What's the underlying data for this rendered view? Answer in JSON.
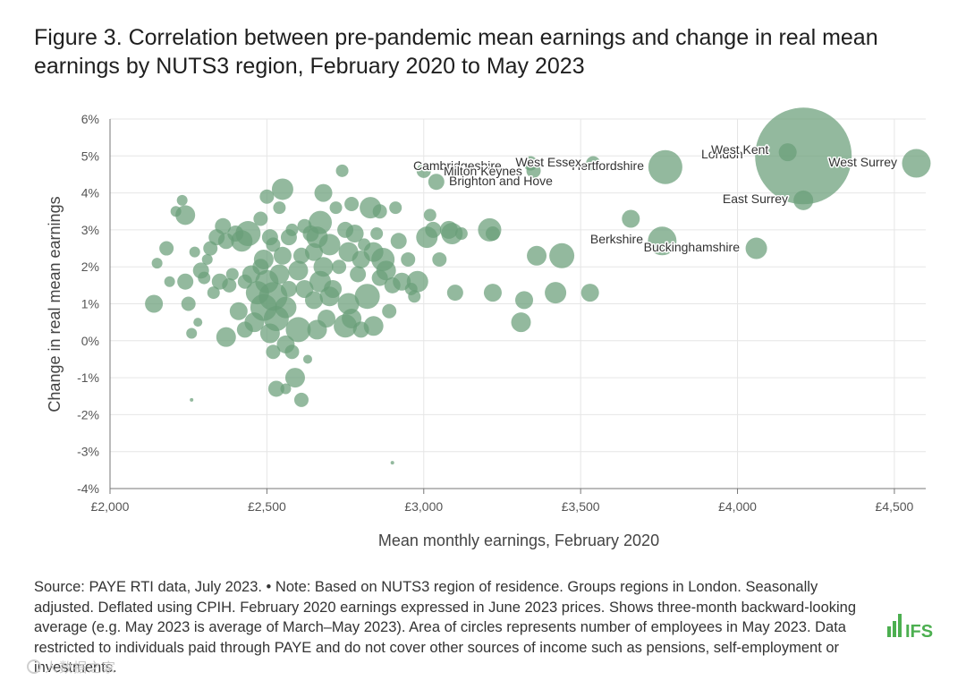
{
  "title": "Figure 3. Correlation between pre-pandemic mean earnings and change in real mean earnings by NUTS3 region, February 2020 to May 2023",
  "note": "Source: PAYE RTI data, July 2023. • Note: Based on NUTS3 region of residence. Groups regions in London. Seasonally adjusted. Deflated using CPIH. February 2020 earnings expressed in June 2023 prices. Shows three-month backward-looking average (e.g. May 2023 is average of March–May 2023). Area of circles represents number of employees in May 2023. Data restricted to individuals paid through PAYE and do not cover other sources of income such as pensions, self-employment or investments.",
  "logo_text": "IFS",
  "watermark_text": "人数据之家",
  "colors": {
    "point": "#6a9e78",
    "grid": "#e6e6e6",
    "axis": "#777777",
    "brand": "#4caf50"
  },
  "chart_data": {
    "type": "scatter",
    "xlabel": "Mean monthly earnings, February 2020",
    "ylabel": "Change in real mean earnings",
    "xlim": [
      2000,
      4600
    ],
    "ylim": [
      -4,
      6
    ],
    "x_ticks": [
      2000,
      2500,
      3000,
      3500,
      4000,
      4500
    ],
    "x_tick_labels": [
      "£2,000",
      "£2,500",
      "£3,000",
      "£3,500",
      "£4,000",
      "£4,500"
    ],
    "y_ticks": [
      -4,
      -3,
      -2,
      -1,
      0,
      1,
      2,
      3,
      4,
      5,
      6
    ],
    "y_tick_labels": [
      "-4%",
      "-3%",
      "-2%",
      "-1%",
      "0%",
      "1%",
      "2%",
      "3%",
      "4%",
      "5%",
      "6%"
    ],
    "size_meaning": "Area of circles represents number of employees in May 2023",
    "labeled_points": [
      {
        "name": "London",
        "x": 4210,
        "y": 5.0,
        "r": 54
      },
      {
        "name": "West Surrey",
        "x": 4570,
        "y": 4.8,
        "r": 16
      },
      {
        "name": "West Kent",
        "x": 4160,
        "y": 5.1,
        "r": 10
      },
      {
        "name": "East Surrey",
        "x": 4210,
        "y": 3.8,
        "r": 11
      },
      {
        "name": "Buckinghamshire",
        "x": 4060,
        "y": 2.5,
        "r": 12
      },
      {
        "name": "Berkshire",
        "x": 3760,
        "y": 2.7,
        "r": 16
      },
      {
        "name": "Hertfordshire",
        "x": 3770,
        "y": 4.7,
        "r": 19
      },
      {
        "name": "West Essex",
        "x": 3540,
        "y": 4.8,
        "r": 8
      },
      {
        "name": "Cambridgeshire",
        "x": 3340,
        "y": 4.8,
        "r": 8
      },
      {
        "name": "Milton Keynes",
        "x": 3350,
        "y": 4.6,
        "r": 8
      },
      {
        "name": "Brighton and Hove",
        "x": 3040,
        "y": 4.3,
        "r": 9
      }
    ],
    "points": [
      [
        2140,
        1.0,
        10
      ],
      [
        2150,
        2.1,
        6
      ],
      [
        2180,
        2.5,
        8
      ],
      [
        2190,
        1.6,
        6
      ],
      [
        2210,
        3.5,
        6
      ],
      [
        2230,
        3.8,
        6
      ],
      [
        2240,
        3.4,
        11
      ],
      [
        2240,
        1.6,
        9
      ],
      [
        2250,
        1.0,
        8
      ],
      [
        2260,
        0.2,
        6
      ],
      [
        2270,
        2.4,
        6
      ],
      [
        2280,
        0.5,
        5
      ],
      [
        2290,
        1.9,
        9
      ],
      [
        2300,
        1.7,
        7
      ],
      [
        2310,
        2.2,
        6
      ],
      [
        2320,
        2.5,
        8
      ],
      [
        2330,
        1.3,
        7
      ],
      [
        2340,
        2.8,
        9
      ],
      [
        2350,
        1.6,
        9
      ],
      [
        2360,
        3.1,
        9
      ],
      [
        2370,
        0.1,
        11
      ],
      [
        2370,
        2.7,
        9
      ],
      [
        2380,
        1.5,
        8
      ],
      [
        2390,
        1.8,
        7
      ],
      [
        2400,
        2.9,
        9
      ],
      [
        2410,
        0.8,
        10
      ],
      [
        2420,
        2.7,
        12
      ],
      [
        2430,
        1.6,
        8
      ],
      [
        2430,
        0.3,
        9
      ],
      [
        2440,
        2.9,
        14
      ],
      [
        2450,
        1.8,
        10
      ],
      [
        2460,
        0.5,
        11
      ],
      [
        2470,
        1.3,
        13
      ],
      [
        2480,
        2.0,
        9
      ],
      [
        2480,
        3.3,
        8
      ],
      [
        2490,
        0.9,
        15
      ],
      [
        2490,
        2.2,
        11
      ],
      [
        2500,
        1.6,
        13
      ],
      [
        2500,
        3.9,
        8
      ],
      [
        2510,
        2.8,
        9
      ],
      [
        2510,
        0.2,
        11
      ],
      [
        2520,
        1.2,
        16
      ],
      [
        2520,
        2.6,
        8
      ],
      [
        2520,
        -0.3,
        8
      ],
      [
        2530,
        -1.3,
        9
      ],
      [
        2530,
        0.6,
        14
      ],
      [
        2540,
        1.8,
        11
      ],
      [
        2540,
        3.6,
        7
      ],
      [
        2550,
        4.1,
        12
      ],
      [
        2550,
        2.3,
        10
      ],
      [
        2560,
        0.9,
        12
      ],
      [
        2560,
        -0.1,
        10
      ],
      [
        2570,
        1.4,
        9
      ],
      [
        2570,
        2.8,
        9
      ],
      [
        2580,
        -0.3,
        8
      ],
      [
        2580,
        3.0,
        7
      ],
      [
        2590,
        -1.0,
        11
      ],
      [
        2600,
        0.3,
        14
      ],
      [
        2600,
        1.9,
        11
      ],
      [
        2610,
        2.3,
        9
      ],
      [
        2620,
        3.1,
        8
      ],
      [
        2620,
        1.4,
        10
      ],
      [
        2630,
        -0.5,
        5
      ],
      [
        2640,
        2.9,
        9
      ],
      [
        2650,
        1.1,
        10
      ],
      [
        2650,
        2.4,
        10
      ],
      [
        2660,
        0.3,
        11
      ],
      [
        2660,
        2.8,
        12
      ],
      [
        2670,
        3.2,
        13
      ],
      [
        2670,
        1.6,
        12
      ],
      [
        2680,
        4.0,
        10
      ],
      [
        2680,
        2.0,
        11
      ],
      [
        2690,
        0.6,
        10
      ],
      [
        2700,
        2.6,
        12
      ],
      [
        2700,
        1.2,
        11
      ],
      [
        2710,
        1.4,
        10
      ],
      [
        2720,
        3.6,
        7
      ],
      [
        2730,
        2.0,
        8
      ],
      [
        2740,
        4.6,
        7
      ],
      [
        2750,
        3.0,
        9
      ],
      [
        2750,
        0.4,
        13
      ],
      [
        2760,
        1.0,
        12
      ],
      [
        2760,
        2.4,
        11
      ],
      [
        2770,
        3.7,
        8
      ],
      [
        2770,
        0.6,
        11
      ],
      [
        2780,
        2.9,
        10
      ],
      [
        2790,
        1.8,
        9
      ],
      [
        2800,
        0.3,
        9
      ],
      [
        2800,
        2.2,
        10
      ],
      [
        2810,
        2.6,
        7
      ],
      [
        2820,
        1.2,
        14
      ],
      [
        2830,
        3.6,
        12
      ],
      [
        2840,
        0.4,
        11
      ],
      [
        2840,
        2.4,
        11
      ],
      [
        2850,
        2.9,
        7
      ],
      [
        2860,
        3.5,
        8
      ],
      [
        2860,
        1.7,
        9
      ],
      [
        2870,
        2.2,
        13
      ],
      [
        2880,
        1.9,
        11
      ],
      [
        2890,
        0.8,
        8
      ],
      [
        2900,
        1.5,
        9
      ],
      [
        2910,
        3.6,
        7
      ],
      [
        2920,
        2.7,
        9
      ],
      [
        2930,
        1.6,
        10
      ],
      [
        2950,
        2.2,
        8
      ],
      [
        2960,
        1.4,
        7
      ],
      [
        2970,
        1.2,
        7
      ],
      [
        2980,
        1.6,
        12
      ],
      [
        3000,
        4.6,
        8
      ],
      [
        3010,
        2.8,
        12
      ],
      [
        3020,
        3.4,
        7
      ],
      [
        3030,
        3.0,
        9
      ],
      [
        3050,
        2.2,
        8
      ],
      [
        3080,
        3.0,
        10
      ],
      [
        3090,
        2.9,
        12
      ],
      [
        3100,
        1.3,
        9
      ],
      [
        3120,
        2.9,
        7
      ],
      [
        3210,
        3.0,
        13
      ],
      [
        3220,
        2.9,
        8
      ],
      [
        3220,
        1.3,
        10
      ],
      [
        3310,
        0.5,
        11
      ],
      [
        3320,
        1.1,
        10
      ],
      [
        3360,
        2.3,
        11
      ],
      [
        3420,
        1.3,
        12
      ],
      [
        3440,
        2.3,
        14
      ],
      [
        3530,
        1.3,
        10
      ],
      [
        3660,
        3.3,
        10
      ],
      [
        2260,
        -1.6,
        2
      ],
      [
        2900,
        -3.3,
        2
      ],
      [
        2610,
        -1.6,
        8
      ],
      [
        2560,
        -1.3,
        6
      ]
    ]
  }
}
